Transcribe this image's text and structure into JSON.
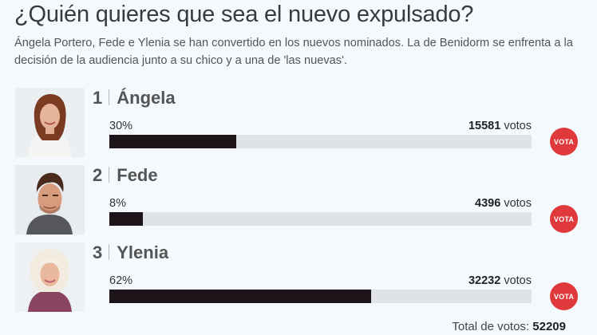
{
  "poll": {
    "title": "¿Quién quieres que sea el nuevo expulsado?",
    "description": "Ángela Portero, Fede e Ylenia se han convertido en los nuevos nominados. La de Benidorm se enfrenta a la decisión de la audiencia junto a su chico y a una de 'las nuevas'.",
    "vote_label": "VOTA",
    "votes_suffix": "votos",
    "total_label": "Total de votos:",
    "total_value": "52209"
  },
  "candidates": [
    {
      "number": "1",
      "name": "Ángela",
      "percent_label": "30%",
      "fraction": 0.3,
      "votes": "15581"
    },
    {
      "number": "2",
      "name": "Fede",
      "percent_label": "8%",
      "fraction": 0.08,
      "votes": "4396"
    },
    {
      "number": "3",
      "name": "Ylenia",
      "percent_label": "62%",
      "fraction": 0.62,
      "votes": "32232"
    }
  ],
  "colors": {
    "bar_fill": "#1c1419",
    "bar_track": "#dfe3e5",
    "vote_button": "#e0393c",
    "background": "#f3f9fd"
  }
}
